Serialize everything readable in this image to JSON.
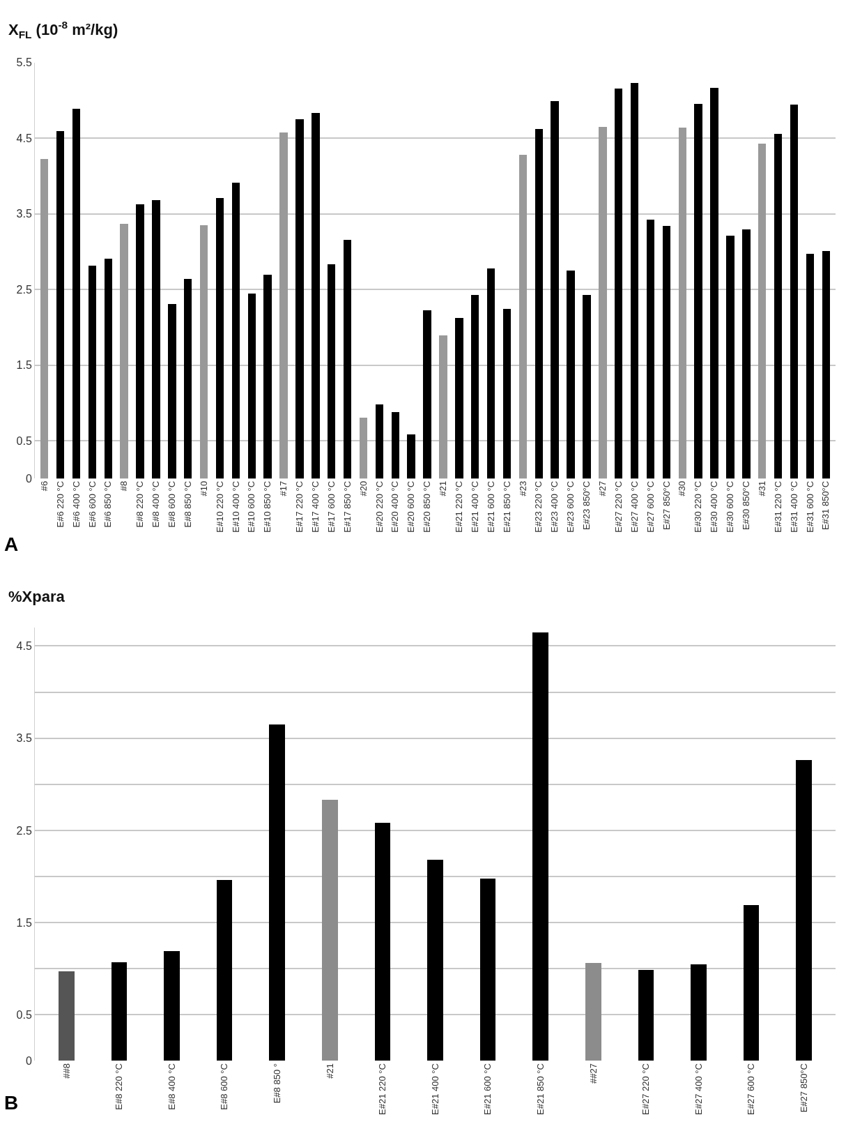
{
  "chart_data": [
    {
      "type": "bar",
      "ylabel": "X$_{FL}$ (10$^{-8}$ m²/kg)",
      "annotations": [
        "A"
      ],
      "categories": [
        "#6",
        "E#6 220 °C",
        "E#6 400 °C",
        "E#6 600 °C",
        "E#6 850 °C",
        "#8",
        "E#8 220 °C",
        "E#8 400 °C",
        "E#8 600 °C",
        "E#8 850 °C",
        "#10",
        "E#10 220 °C",
        "E#10 400 °C",
        "E#10 600 °C",
        "E#10 850 °C",
        "#17",
        "E#17 220 °C",
        "E#17 400 °C",
        "E#17 600 °C",
        "E#17 850 °C",
        "#20",
        "E#20 220 °C",
        "E#20 400 °C",
        "E#20 600 °C",
        "E#20 850 °C",
        "#21",
        "E#21 220 °C",
        "E#21 400 °C",
        "E#21 600 °C",
        "E#21 850 °C",
        "#23",
        "E#23 220 °C",
        "E#23 400 °C",
        "E#23 600 °C",
        "E#23 850°C",
        "#27",
        "E#27 220 °C",
        "E#27 400 °C",
        "E#27 600 °C",
        "E#27 850°C",
        "#30",
        "E#30 220 °C",
        "E#30 400 °C",
        "E#30 600 °C",
        "E#30 850°C",
        "#31",
        "E#31 220 °C",
        "E#31 400 °C",
        "E#31 600 °C",
        "E#31 850°C"
      ],
      "values": [
        4.23,
        4.6,
        4.89,
        2.82,
        2.91,
        3.37,
        3.63,
        3.68,
        2.31,
        2.64,
        3.35,
        3.71,
        3.91,
        2.45,
        2.7,
        4.58,
        4.75,
        4.84,
        2.84,
        3.16,
        0.81,
        0.98,
        0.88,
        0.59,
        2.23,
        1.9,
        2.13,
        2.43,
        2.78,
        2.25,
        4.28,
        4.62,
        4.99,
        2.75,
        2.43,
        4.65,
        5.16,
        5.23,
        3.43,
        3.34,
        4.64,
        4.96,
        5.17,
        3.21,
        3.3,
        4.43,
        4.56,
        4.95,
        2.97,
        3.01
      ],
      "colors": [
        "#999999",
        "#000000",
        "#000000",
        "#000000",
        "#000000",
        "#999999",
        "#000000",
        "#000000",
        "#000000",
        "#000000",
        "#999999",
        "#000000",
        "#000000",
        "#000000",
        "#000000",
        "#999999",
        "#000000",
        "#000000",
        "#000000",
        "#000000",
        "#999999",
        "#000000",
        "#000000",
        "#000000",
        "#000000",
        "#999999",
        "#000000",
        "#000000",
        "#000000",
        "#000000",
        "#999999",
        "#000000",
        "#000000",
        "#000000",
        "#000000",
        "#999999",
        "#000000",
        "#000000",
        "#000000",
        "#000000",
        "#999999",
        "#000000",
        "#000000",
        "#000000",
        "#000000",
        "#999999",
        "#000000",
        "#000000",
        "#000000",
        "#000000"
      ],
      "ylim": [
        0,
        5.5
      ],
      "yticks": [
        0,
        0.5,
        1.5,
        2.5,
        3.5,
        4.5,
        5.5
      ],
      "grid": "y"
    },
    {
      "type": "bar",
      "ylabel": "%Xpara",
      "annotations": [
        "B"
      ],
      "categories": [
        "##8",
        "E#8 220 °C",
        "E#8 400 °C",
        "E#8 600 °C",
        "E#8 850 °",
        "#21",
        "E#21 220 °C",
        "E#21 400 °C",
        "E#21 600 °C",
        "E#21 850 °C",
        "##27",
        "E#27 220 °C",
        "E#27 400 °C",
        "E#27 600 °C",
        "E#27 850°C"
      ],
      "values": [
        0.97,
        1.07,
        1.19,
        1.96,
        3.65,
        2.83,
        2.58,
        2.18,
        1.98,
        4.65,
        1.06,
        0.99,
        1.05,
        1.69,
        3.26
      ],
      "colors": [
        "#555555",
        "#000000",
        "#000000",
        "#000000",
        "#000000",
        "#8c8c8c",
        "#000000",
        "#000000",
        "#000000",
        "#000000",
        "#8c8c8c",
        "#000000",
        "#000000",
        "#000000",
        "#000000"
      ],
      "ylim": [
        0,
        4.7
      ],
      "yticks": [
        0,
        0.5,
        {
          "value": 1,
          "label": null
        },
        1.5,
        {
          "value": 2,
          "label": null
        },
        2.5,
        {
          "value": 3,
          "label": null
        },
        3.5,
        {
          "value": 4,
          "label": null
        },
        4.5
      ],
      "grid": "y"
    }
  ]
}
